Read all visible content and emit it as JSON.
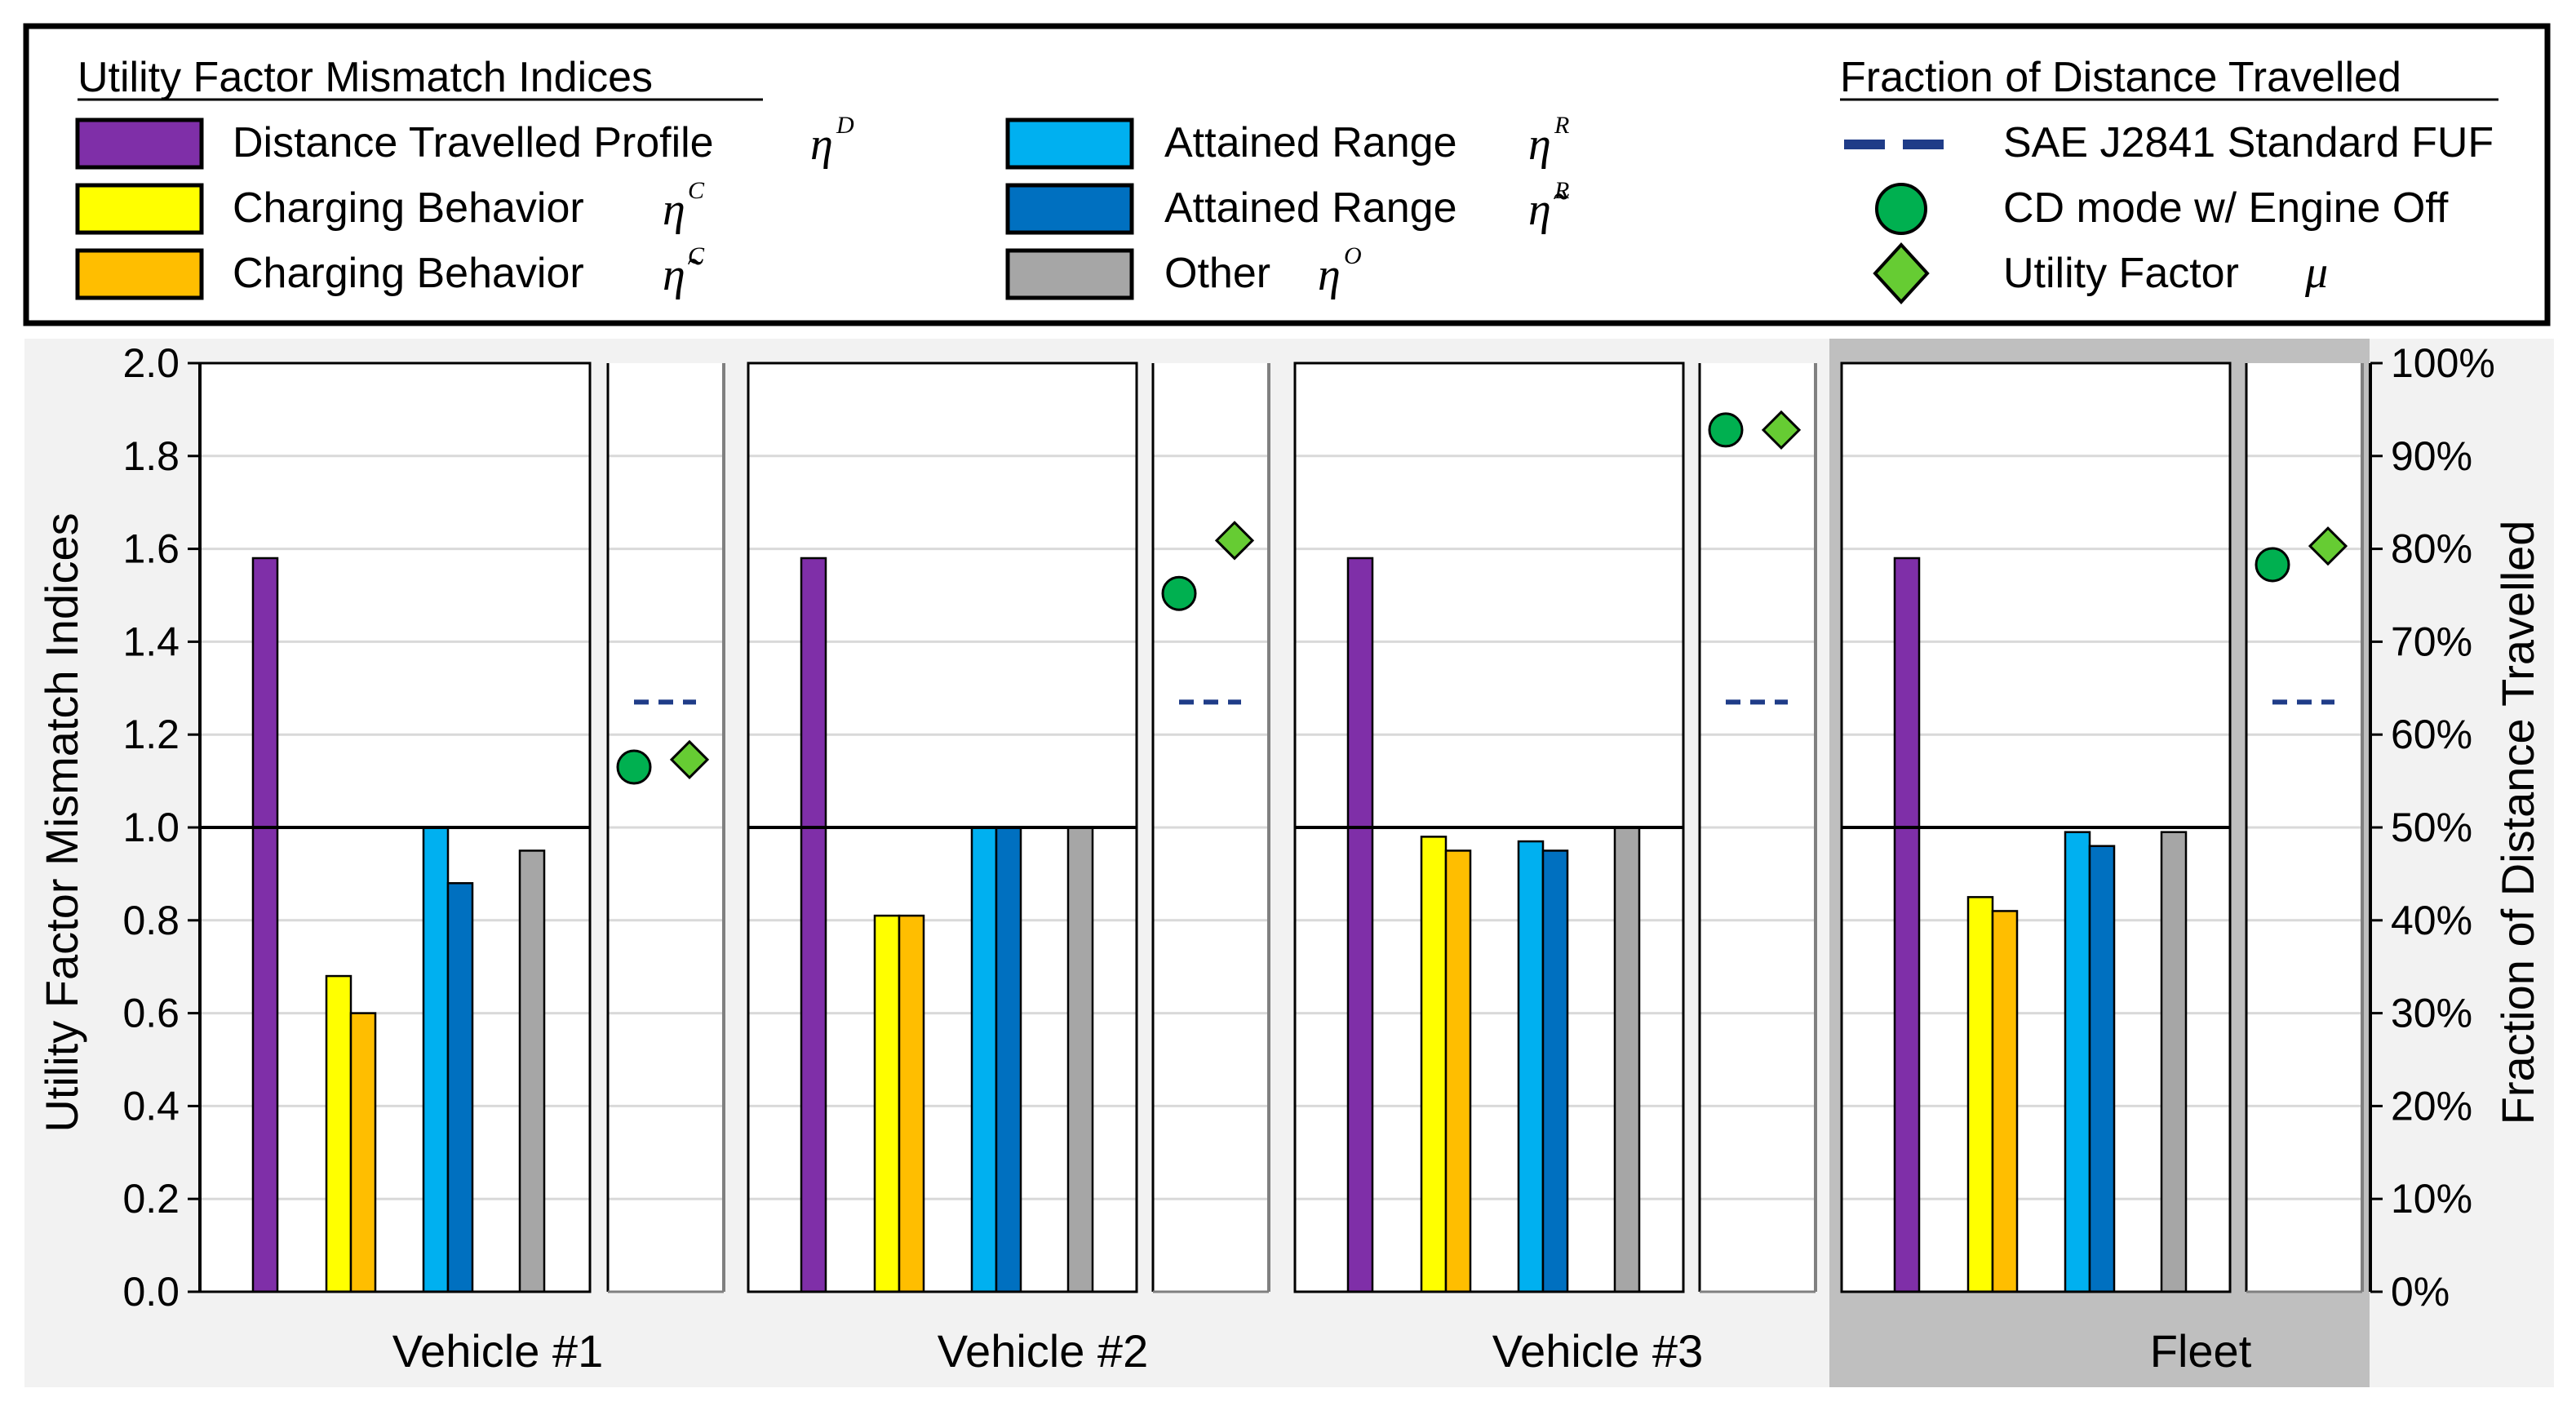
{
  "legend": {
    "indices_title": "Utility Factor Mismatch Indices",
    "fraction_title": "Fraction of Distance Travelled",
    "items": [
      {
        "key": "distance",
        "label": "Distance Travelled Profile",
        "symbol": "η",
        "tilde": false,
        "sup": "D",
        "color": "#7F2FA8"
      },
      {
        "key": "charging",
        "label": "Charging Behavior",
        "symbol": "η",
        "tilde": false,
        "sup": "C",
        "color": "#FFFF00"
      },
      {
        "key": "charging_t",
        "label": "Charging Behavior",
        "symbol": "η̃",
        "tilde": true,
        "sup": "C",
        "color": "#FFBE00"
      },
      {
        "key": "range",
        "label": "Attained Range",
        "symbol": "η",
        "tilde": false,
        "sup": "R",
        "color": "#00B0F0"
      },
      {
        "key": "range_t",
        "label": "Attained Range",
        "symbol": "η̃",
        "tilde": true,
        "sup": "R",
        "color": "#0070C0"
      },
      {
        "key": "other",
        "label": "Other",
        "symbol": "η",
        "tilde": false,
        "sup": "O",
        "color": "#A6A6A6"
      }
    ],
    "fraction_items": [
      {
        "key": "fuf",
        "label": "SAE J2841 Standard FUF",
        "marker": "dash",
        "color": "#1F3C88"
      },
      {
        "key": "cd",
        "label": "CD mode w/ Engine Off",
        "marker": "circle",
        "color": "#00B050"
      },
      {
        "key": "uf",
        "label": "Utility Factor",
        "symbol": "μ",
        "marker": "diamond",
        "color": "#66CC33"
      }
    ]
  },
  "chart_data": {
    "type": "bar",
    "title": "",
    "ylabel": "Utility Factor Mismatch Indices",
    "y2label": "Fraction of Distance Travelled",
    "ylim": [
      0,
      2.0
    ],
    "yticks": [
      "0.0",
      "0.2",
      "0.4",
      "0.6",
      "0.8",
      "1.0",
      "1.2",
      "1.4",
      "1.6",
      "1.8",
      "2.0"
    ],
    "y2lim": [
      0,
      100
    ],
    "y2ticks": [
      "0%",
      "10%",
      "20%",
      "30%",
      "40%",
      "50%",
      "60%",
      "70%",
      "80%",
      "90%",
      "100%"
    ],
    "reference_line": 1.0,
    "grid": "horizontal",
    "legend_position": "top",
    "groups": [
      {
        "name": "Vehicle #1",
        "highlighted": false,
        "bars": {
          "distance": 1.58,
          "charging": 0.68,
          "charging_t": 0.6,
          "range": 1.0,
          "range_t": 0.88,
          "other": 0.95
        },
        "fraction": {
          "fuf": 63.5,
          "cd": 56.5,
          "uf": 57.3
        }
      },
      {
        "name": "Vehicle #2",
        "highlighted": false,
        "bars": {
          "distance": 1.58,
          "charging": 0.81,
          "charging_t": 0.81,
          "range": 1.0,
          "range_t": 1.0,
          "other": 1.0
        },
        "fraction": {
          "fuf": 63.5,
          "cd": 75.2,
          "uf": 80.9
        }
      },
      {
        "name": "Vehicle #3",
        "highlighted": false,
        "bars": {
          "distance": 1.58,
          "charging": 0.98,
          "charging_t": 0.95,
          "range": 0.97,
          "range_t": 0.95,
          "other": 1.0
        },
        "fraction": {
          "fuf": 63.5,
          "cd": 92.8,
          "uf": 92.8
        }
      },
      {
        "name": "Fleet",
        "highlighted": true,
        "bars": {
          "distance": 1.58,
          "charging": 0.85,
          "charging_t": 0.82,
          "range": 0.99,
          "range_t": 0.96,
          "other": 0.99
        },
        "fraction": {
          "fuf": 63.5,
          "cd": 78.3,
          "uf": 80.3
        }
      }
    ]
  }
}
